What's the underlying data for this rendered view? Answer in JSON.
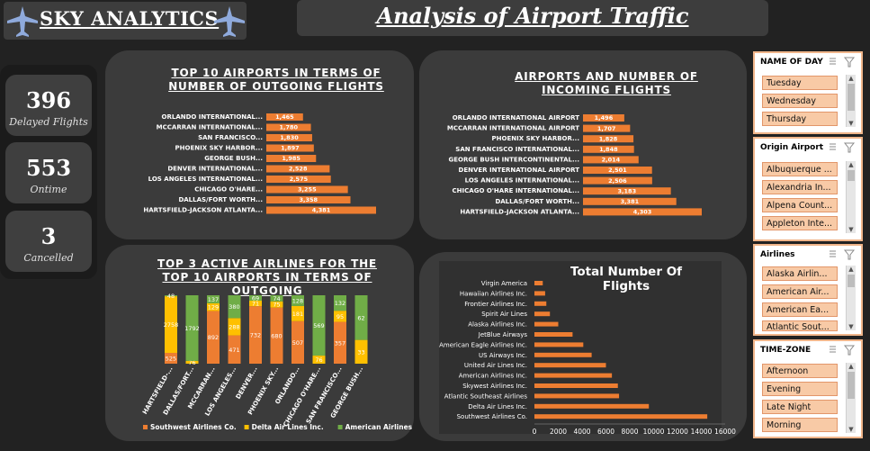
{
  "header": {
    "brand": "SKY ANALYTICS",
    "title": "Analysis of Airport Traffic"
  },
  "kpis": [
    {
      "value": "396",
      "label": "Delayed Flights"
    },
    {
      "value": "553",
      "label": "Ontime"
    },
    {
      "value": "3",
      "label": "Cancelled"
    }
  ],
  "colors": {
    "southwest": "#ed7d31",
    "delta": "#ffc000",
    "american": "#70ad47",
    "panel": "#3b3b3b"
  },
  "slicers": {
    "day": {
      "title": "NAME OF DAY",
      "items": [
        "Tuesday",
        "Wednesday",
        "Thursday"
      ]
    },
    "origin": {
      "title": "Origin Airport",
      "items": [
        "Albuquerque ...",
        "Alexandria In...",
        "Alpena Count...",
        "Appleton Inte..."
      ]
    },
    "airlines": {
      "title": "Airlines",
      "items": [
        "Alaska Airlin...",
        "American Air...",
        "American Ea...",
        "Atlantic Sout..."
      ]
    },
    "timezone": {
      "title": "TIME-ZONE",
      "items": [
        "Afternoon",
        "Evening",
        "Late Night",
        "Morning"
      ]
    }
  },
  "chart_data": [
    {
      "type": "bar",
      "orientation": "horizontal",
      "title": "TOP 10 AIRPORTS IN TERMS OF NUMBER OF OUTGOING FLIGHTS",
      "categories": [
        "ORLANDO INTERNATIONAL...",
        "MCCARRAN INTERNATIONAL...",
        "SAN FRANCISCO...",
        "PHOENIX SKY HARBOR...",
        "GEORGE BUSH...",
        "DENVER INTERNATIONAL...",
        "LOS ANGELES INTERNATIONAL...",
        "CHICAGO O'HARE...",
        "DALLAS/FORT WORTH...",
        "HARTSFIELD-JACKSON ATLANTA..."
      ],
      "values": [
        1465,
        1780,
        1830,
        1897,
        1985,
        2528,
        2575,
        3255,
        3358,
        4381
      ],
      "labels": [
        "1,465",
        "1,780",
        "1,830",
        "1,897",
        "1,985",
        "2,528",
        "2,575",
        "3,255",
        "3,358",
        "4,381"
      ]
    },
    {
      "type": "bar",
      "orientation": "horizontal",
      "title": "AIRPORTS AND NUMBER OF INCOMING FLIGHTS",
      "categories": [
        "ORLANDO INTERNATIONAL AIRPORT",
        "MCCARRAN INTERNATIONAL AIRPORT",
        "PHOENIX SKY HARBOR...",
        "SAN FRANCISCO INTERNATIONAL...",
        "GEORGE BUSH INTERCONTINENTAL...",
        "DENVER INTERNATIONAL AIRPORT",
        "LOS ANGELES INTERNATIONAL...",
        "CHICAGO O'HARE INTERNATIONAL...",
        "DALLAS/FORT WORTH...",
        "HARTSFIELD-JACKSON ATLANTA..."
      ],
      "values": [
        1496,
        1707,
        1828,
        1848,
        2014,
        2501,
        2506,
        3183,
        3381,
        4303
      ],
      "labels": [
        "1,496",
        "1,707",
        "1,828",
        "1,848",
        "2,014",
        "2,501",
        "2,506",
        "3,183",
        "3,381",
        "4,303"
      ]
    },
    {
      "type": "bar",
      "stacked": true,
      "title": "TOP 3 ACTIVE AIRLINES FOR THE TOP 10 AIRPORTS IN TERMS OF OUTGOING",
      "categories": [
        "HARTSFIELD-...",
        "DALLAS/FORT...",
        "MCCARRAN...",
        "LOS ANGELES...",
        "DENVER...",
        "PHOENIX SKY...",
        "ORLANDO...",
        "CHICAGO O'HARE...",
        "SAN FRANCISCO...",
        "GEORGE BUSH..."
      ],
      "series": [
        {
          "name": "Southwest Airlines Co.",
          "values": [
            525,
            0,
            892,
            471,
            732,
            680,
            507,
            0,
            357,
            0
          ],
          "labels": [
            "525",
            "",
            "892",
            "471",
            "732",
            "680",
            "507",
            "",
            "357",
            ""
          ]
        },
        {
          "name": "Delta Air Lines Inc.",
          "values": [
            2758,
            76,
            129,
            288,
            71,
            75,
            181,
            76,
            95,
            33
          ],
          "labels": [
            "2758",
            "76",
            "129",
            "288",
            "71",
            "75",
            "181",
            "76",
            "95",
            "33"
          ]
        },
        {
          "name": "American Airlines Inc.",
          "values": [
            48,
            1792,
            137,
            380,
            69,
            74,
            128,
            569,
            132,
            62
          ],
          "labels": [
            "48",
            "1792",
            "137",
            "380",
            "69",
            "74",
            "128",
            "569",
            "132",
            "62"
          ]
        }
      ]
    },
    {
      "type": "bar",
      "orientation": "horizontal",
      "title": "Total Number Of Flights",
      "categories": [
        "Virgin America",
        "Hawaiian Airlines Inc.",
        "Frontier Airlines Inc.",
        "Spirit Air Lines",
        "Alaska Airlines Inc.",
        "JetBlue Airways",
        "American Eagle Airlines Inc.",
        "US Airways Inc.",
        "United Air Lines Inc.",
        "American Airlines Inc.",
        "Skywest Airlines Inc.",
        "Atlantic Southeast Airlines",
        "Delta Air Lines Inc.",
        "Southwest Airlines Co."
      ],
      "values": [
        700,
        900,
        1000,
        1300,
        2000,
        3200,
        4100,
        4800,
        6000,
        6500,
        7000,
        7100,
        9600,
        14500
      ],
      "xlim": [
        0,
        16000
      ],
      "xticks": [
        "0",
        "2000",
        "4000",
        "6000",
        "8000",
        "10000",
        "12000",
        "14000",
        "16000"
      ]
    }
  ]
}
